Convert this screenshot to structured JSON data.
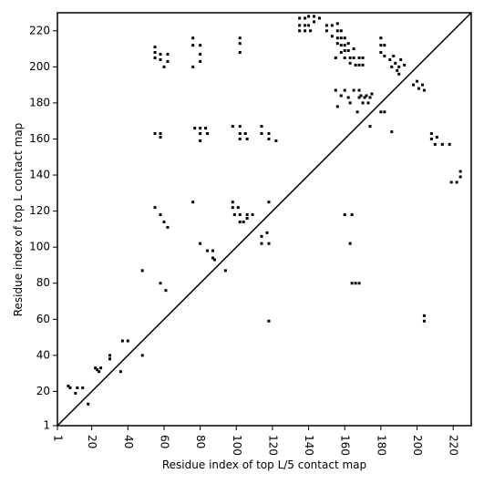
{
  "chart_data": {
    "type": "scatter",
    "x_label": "Residue index of top L/5 contact map",
    "y_label": "Residue index of top L contact map",
    "xlim": [
      1,
      230
    ],
    "ylim": [
      1,
      230
    ],
    "xticks": [
      1,
      20,
      40,
      60,
      80,
      100,
      120,
      140,
      160,
      180,
      200,
      220
    ],
    "yticks": [
      1,
      20,
      40,
      60,
      80,
      100,
      120,
      140,
      160,
      180,
      200,
      220
    ],
    "color": "#000000",
    "x": [
      7,
      8,
      11,
      12,
      15,
      18,
      22,
      23,
      24,
      25,
      30,
      30,
      36,
      37,
      40,
      48,
      48,
      55,
      58,
      58,
      55,
      55,
      55,
      58,
      58,
      60,
      62,
      62,
      55,
      58,
      60,
      62,
      58,
      61,
      76,
      76,
      76,
      76,
      80,
      80,
      80,
      77,
      80,
      80,
      80,
      83,
      84,
      80,
      84,
      87,
      87,
      88,
      94,
      98,
      102,
      102,
      102,
      105,
      106,
      102,
      102,
      102,
      98,
      98,
      101,
      102,
      99,
      102,
      104,
      106,
      106,
      109,
      114,
      114,
      118,
      118,
      122,
      114,
      114,
      117,
      118,
      118,
      118,
      135,
      135,
      135,
      138,
      138,
      138,
      140,
      140,
      141,
      143,
      143,
      146,
      150,
      150,
      153,
      156,
      153,
      156,
      156,
      156,
      158,
      158,
      158,
      158,
      160,
      160,
      160,
      160,
      162,
      162,
      163,
      163,
      165,
      165,
      166,
      168,
      168,
      170,
      170,
      155,
      155,
      156,
      158,
      160,
      162,
      163,
      165,
      168,
      168,
      169,
      170,
      171,
      172,
      173,
      174,
      175,
      167,
      174,
      180,
      180,
      180,
      182,
      182,
      180,
      182,
      185,
      186,
      187,
      188,
      189,
      190,
      190,
      191,
      193,
      186,
      198,
      200,
      201,
      203,
      204,
      204,
      204,
      208,
      208,
      210,
      211,
      214,
      218,
      219,
      222,
      224,
      224,
      160,
      164,
      163,
      164,
      166,
      168
    ],
    "values": [
      23,
      22,
      19,
      22,
      22,
      13,
      33,
      32,
      31,
      33,
      38,
      40,
      31,
      48,
      48,
      40,
      87,
      163,
      161,
      163,
      211,
      208,
      205,
      207,
      204,
      200,
      203,
      207,
      122,
      118,
      114,
      111,
      80,
      76,
      216,
      212,
      200,
      125,
      212,
      207,
      203,
      166,
      166,
      163,
      159,
      166,
      163,
      102,
      98,
      98,
      94,
      93,
      87,
      167,
      167,
      163,
      160,
      163,
      160,
      216,
      213,
      208,
      125,
      122,
      122,
      118,
      118,
      114,
      114,
      116,
      118,
      118,
      167,
      163,
      163,
      160,
      159,
      106,
      102,
      108,
      102,
      125,
      59,
      227,
      223,
      220,
      227,
      223,
      220,
      228,
      223,
      220,
      228,
      225,
      227,
      223,
      220,
      223,
      224,
      217,
      220,
      216,
      213,
      220,
      216,
      212,
      208,
      216,
      212,
      209,
      205,
      213,
      209,
      205,
      202,
      210,
      205,
      201,
      205,
      201,
      205,
      201,
      205,
      187,
      178,
      184,
      187,
      183,
      180,
      187,
      187,
      183,
      184,
      180,
      183,
      184,
      180,
      183,
      185,
      175,
      167,
      216,
      212,
      208,
      212,
      206,
      175,
      175,
      204,
      200,
      206,
      202,
      198,
      200,
      196,
      204,
      201,
      164,
      190,
      192,
      188,
      190,
      187,
      62,
      59,
      163,
      160,
      157,
      161,
      157,
      157,
      136,
      136,
      142,
      139,
      118,
      118,
      102,
      80,
      80,
      80
    ]
  }
}
